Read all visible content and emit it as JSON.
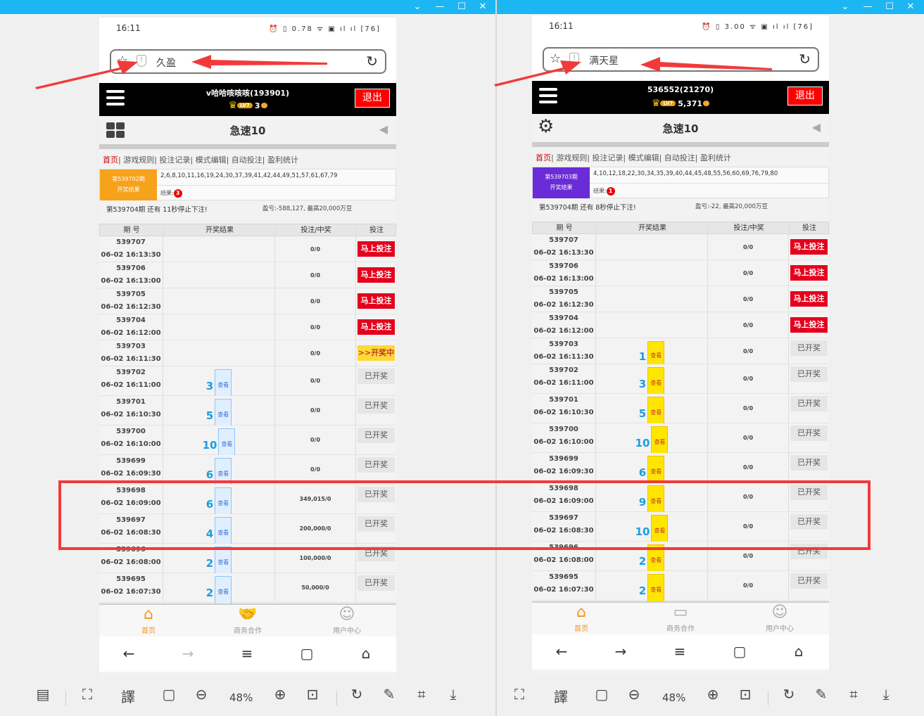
{
  "accent": "#e4001c",
  "highlight_color": "#f23a3a",
  "window_controls": {
    "chevron": "⌄",
    "minimize": "—",
    "maximize": "☐",
    "close": "✕"
  },
  "viewers": [
    {
      "zoom": "48%",
      "toolbar_icons": [
        "layout-icon",
        "ocr-icon",
        "translate-icon",
        "fit-icon",
        "zoom-out-icon",
        "zoom-in-icon",
        "actual-size-icon",
        "rotate-icon",
        "edit-icon",
        "crop-icon",
        "download-icon"
      ],
      "phone": {
        "time": "16:11",
        "net_speed": "0.78",
        "battery": "76",
        "site_name": "久盈",
        "username": "v哈哈咳咳咳(193901)",
        "level": "LV7",
        "balance": "3",
        "logout": "退出",
        "game_title": "急速10",
        "left_icon": "grid-icon",
        "nav": {
          "home": "首页",
          "rest": "| 游戏规则| 投注记录| 模式编辑| 自动投注| 盈利统计"
        },
        "last_period": "第539702期",
        "last_label": "开奖结果",
        "label_color": "#f7a21b",
        "numbers": "2,6,8,10,11,16,19,24,30,37,39,41,42,44,49,51,57,61,67,79",
        "result_label": "结果:",
        "result_value": "3",
        "countdown": "第539704期 还有 11秒停止下注!",
        "profit": "盈亏:-588,127, 最高20,000万豆",
        "headers": [
          "期 号",
          "开奖结果",
          "投注/中奖",
          "投注"
        ],
        "view_label": "查看",
        "view_style": "blue",
        "rows": [
          {
            "period": "539707",
            "time": "06-02 16:13:30",
            "result": "",
            "bet": "0/0",
            "action": "马上投注",
            "state": "bet"
          },
          {
            "period": "539706",
            "time": "06-02 16:13:00",
            "result": "",
            "bet": "0/0",
            "action": "马上投注",
            "state": "bet"
          },
          {
            "period": "539705",
            "time": "06-02 16:12:30",
            "result": "",
            "bet": "0/0",
            "action": "马上投注",
            "state": "bet"
          },
          {
            "period": "539704",
            "time": "06-02 16:12:00",
            "result": "",
            "bet": "0/0",
            "action": "马上投注",
            "state": "bet"
          },
          {
            "period": "539703",
            "time": "06-02 16:11:30",
            "result": "",
            "bet": "0/0",
            "action": ">>开奖中",
            "state": "drawing"
          },
          {
            "period": "539702",
            "time": "06-02 16:11:00",
            "result": "3",
            "bet": "0/0",
            "action": "已开奖",
            "state": "done"
          },
          {
            "period": "539701",
            "time": "06-02 16:10:30",
            "result": "5",
            "bet": "0/0",
            "action": "已开奖",
            "state": "done"
          },
          {
            "period": "539700",
            "time": "06-02 16:10:00",
            "result": "10",
            "bet": "0/0",
            "action": "已开奖",
            "state": "done"
          },
          {
            "period": "539699",
            "time": "06-02 16:09:30",
            "result": "6",
            "bet": "0/0",
            "action": "已开奖",
            "state": "done"
          },
          {
            "period": "539698",
            "time": "06-02 16:09:00",
            "result": "6",
            "bet": "349,015/0",
            "action": "已开奖",
            "state": "done"
          },
          {
            "period": "539697",
            "time": "06-02 16:08:30",
            "result": "4",
            "bet": "200,000/0",
            "action": "已开奖",
            "state": "done"
          },
          {
            "period": "539696",
            "time": "06-02 16:08:00",
            "result": "2",
            "bet": "100,000/0",
            "action": "已开奖",
            "state": "done"
          },
          {
            "period": "539695",
            "time": "06-02 16:07:30",
            "result": "2",
            "bet": "50,000/0",
            "action": "已开奖",
            "state": "done"
          }
        ],
        "tabs": [
          {
            "label": "首页",
            "icon": "home-icon"
          },
          {
            "label": "商务合作",
            "icon": "handshake-icon"
          },
          {
            "label": "用户中心",
            "icon": "user-icon"
          }
        ]
      }
    },
    {
      "zoom": "48%",
      "toolbar_icons": [
        "ocr-icon",
        "translate-icon",
        "fit-icon",
        "zoom-out-icon",
        "zoom-in-icon",
        "actual-size-icon",
        "rotate-icon",
        "edit-icon",
        "crop-icon",
        "download-icon"
      ],
      "phone": {
        "time": "16:11",
        "net_speed": "3.00",
        "battery": "76",
        "site_name": "满天星",
        "username": "536552(21270)",
        "level": "LV7",
        "balance": "5,371",
        "logout": "退出",
        "game_title": "急速10",
        "left_icon": "gear-icon",
        "nav": {
          "home": "首页",
          "rest": "| 游戏规则| 投注记录| 模式编辑| 自动投注| 盈利统计"
        },
        "last_period": "第539703期",
        "last_label": "开奖结果",
        "label_color": "#6a2bd8",
        "numbers": "4,10,12,18,22,30,34,35,39,40,44,45,48,55,56,60,69,76,79,80",
        "result_label": "结果:",
        "result_value": "1",
        "countdown": "第539704期 还有 8秒停止下注!",
        "profit": "盈亏:-22, 最高20,000万豆",
        "headers": [
          "期 号",
          "开奖结果",
          "投注/中奖",
          "投注"
        ],
        "view_label": "查看",
        "view_style": "yellow",
        "rows": [
          {
            "period": "539707",
            "time": "06-02 16:13:30",
            "result": "",
            "bet": "0/0",
            "action": "马上投注",
            "state": "bet"
          },
          {
            "period": "539706",
            "time": "06-02 16:13:00",
            "result": "",
            "bet": "0/0",
            "action": "马上投注",
            "state": "bet"
          },
          {
            "period": "539705",
            "time": "06-02 16:12:30",
            "result": "",
            "bet": "0/0",
            "action": "马上投注",
            "state": "bet"
          },
          {
            "period": "539704",
            "time": "06-02 16:12:00",
            "result": "",
            "bet": "0/0",
            "action": "马上投注",
            "state": "bet"
          },
          {
            "period": "539703",
            "time": "06-02 16:11:30",
            "result": "1",
            "bet": "0/0",
            "action": "已开奖",
            "state": "done"
          },
          {
            "period": "539702",
            "time": "06-02 16:11:00",
            "result": "3",
            "bet": "0/0",
            "action": "已开奖",
            "state": "done"
          },
          {
            "period": "539701",
            "time": "06-02 16:10:30",
            "result": "5",
            "bet": "0/0",
            "action": "已开奖",
            "state": "done"
          },
          {
            "period": "539700",
            "time": "06-02 16:10:00",
            "result": "10",
            "bet": "0/0",
            "action": "已开奖",
            "state": "done"
          },
          {
            "period": "539699",
            "time": "06-02 16:09:30",
            "result": "6",
            "bet": "0/0",
            "action": "已开奖",
            "state": "done"
          },
          {
            "period": "539698",
            "time": "06-02 16:09:00",
            "result": "9",
            "bet": "0/0",
            "action": "已开奖",
            "state": "done"
          },
          {
            "period": "539697",
            "time": "06-02 16:08:30",
            "result": "10",
            "bet": "0/0",
            "action": "已开奖",
            "state": "done"
          },
          {
            "period": "539696",
            "time": "06-02 16:08:00",
            "result": "2",
            "bet": "0/0",
            "action": "已开奖",
            "state": "done"
          },
          {
            "period": "539695",
            "time": "06-02 16:07:30",
            "result": "2",
            "bet": "0/0",
            "action": "已开奖",
            "state": "done"
          }
        ],
        "tabs": [
          {
            "label": "首页",
            "icon": "home-icon"
          },
          {
            "label": "商务合作",
            "icon": "card-icon"
          },
          {
            "label": "用户中心",
            "icon": "user-icon"
          }
        ]
      }
    }
  ]
}
